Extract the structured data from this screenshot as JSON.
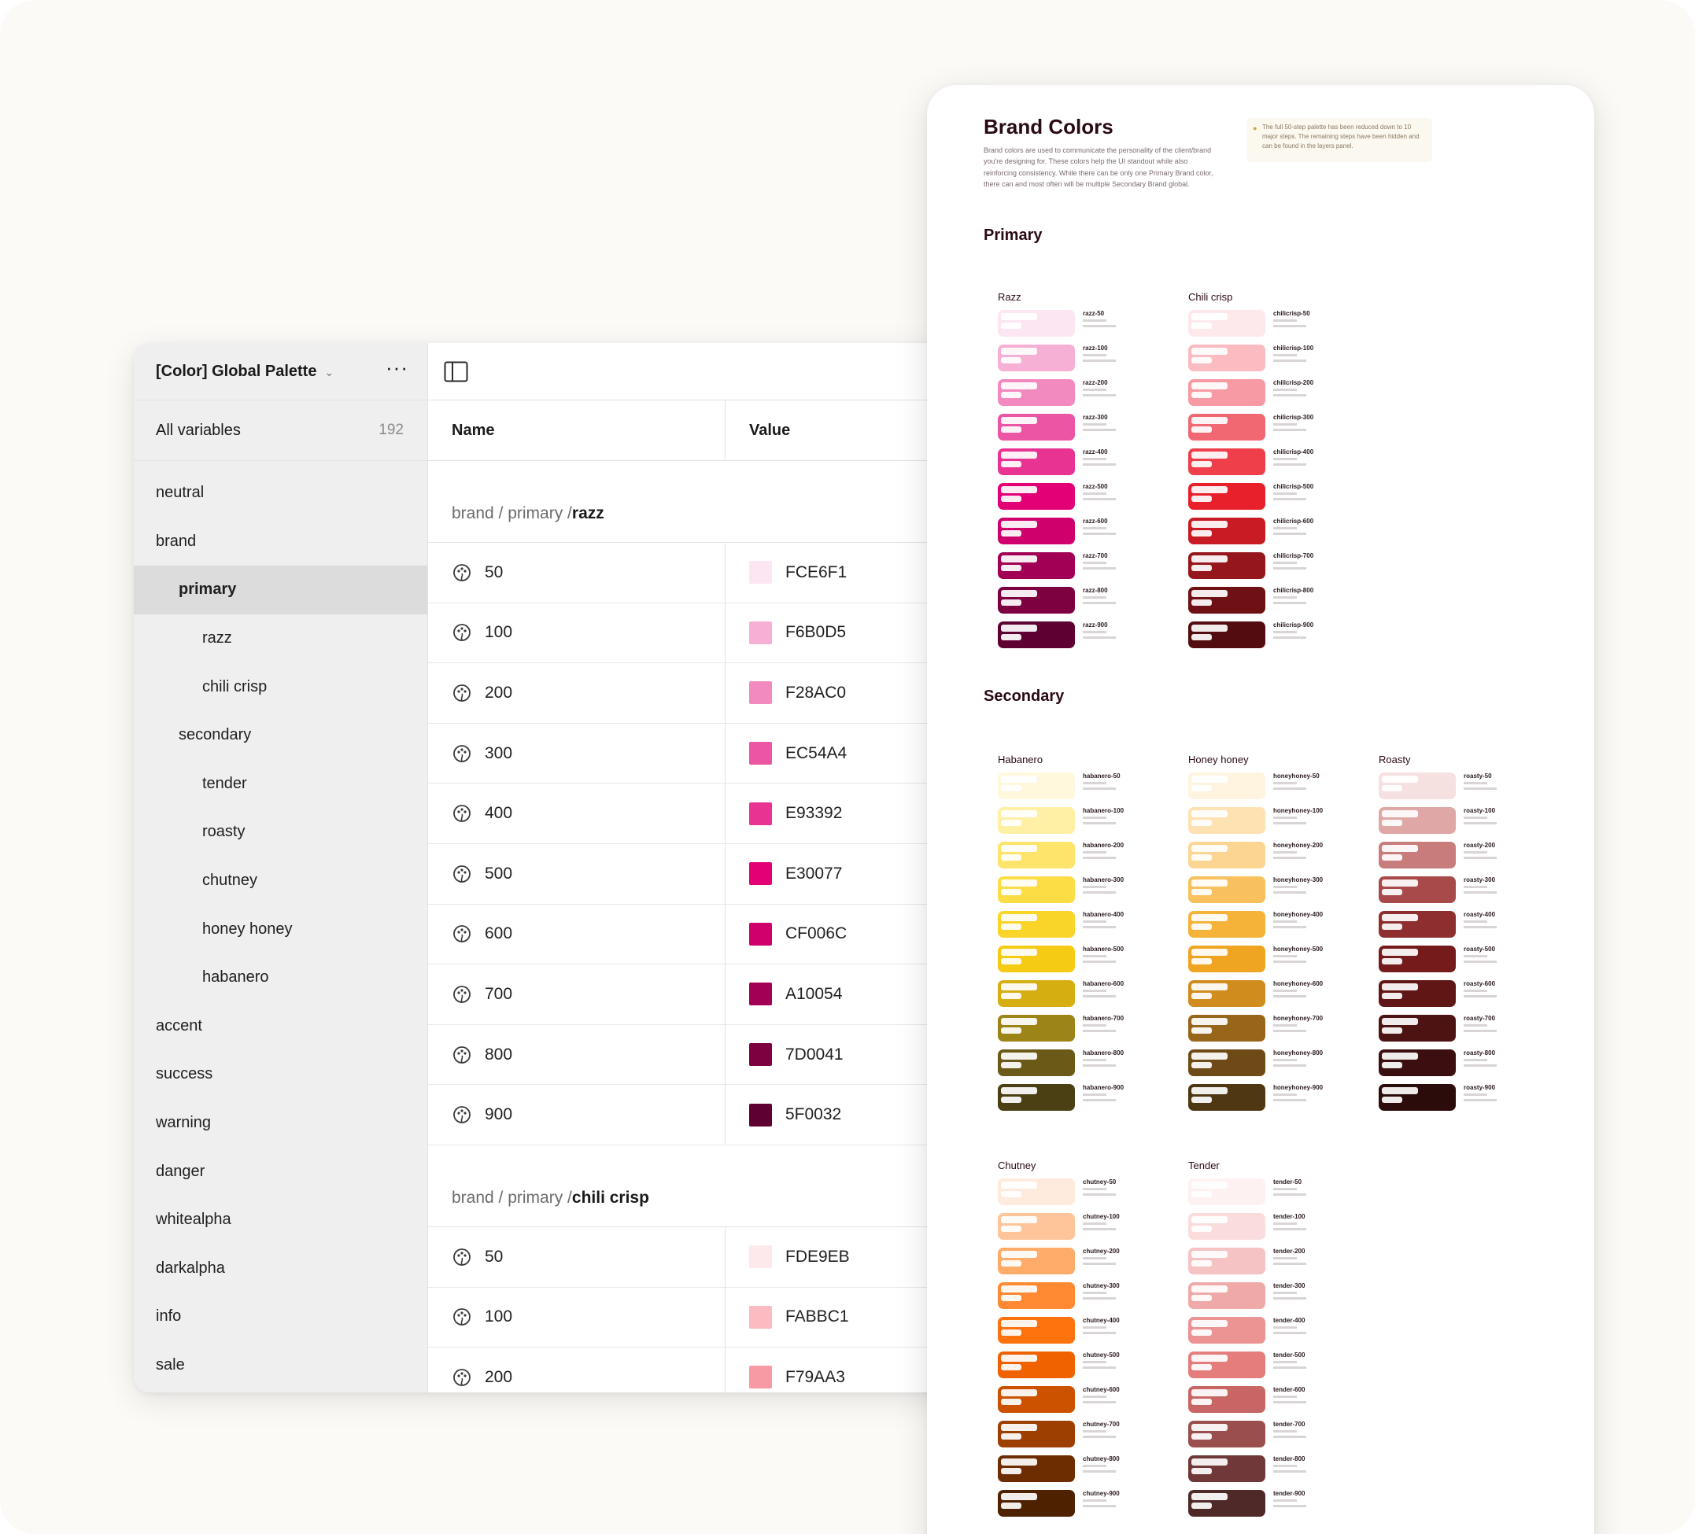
{
  "window": {
    "collection_title": "[Color] Global Palette",
    "all_variables_label": "All variables",
    "all_variables_count": "192"
  },
  "sidebar": {
    "groups": [
      {
        "label": "neutral",
        "level": 0
      },
      {
        "label": "brand",
        "level": 0
      },
      {
        "label": "primary",
        "level": 1,
        "selected": true
      },
      {
        "label": "razz",
        "level": 2
      },
      {
        "label": "chili crisp",
        "level": 2
      },
      {
        "label": "secondary",
        "level": 1
      },
      {
        "label": "tender",
        "level": 2
      },
      {
        "label": "roasty",
        "level": 2
      },
      {
        "label": "chutney",
        "level": 2
      },
      {
        "label": "honey honey",
        "level": 2
      },
      {
        "label": "habanero",
        "level": 2
      },
      {
        "label": "accent",
        "level": 0
      },
      {
        "label": "success",
        "level": 0
      },
      {
        "label": "warning",
        "level": 0
      },
      {
        "label": "danger",
        "level": 0
      },
      {
        "label": "whitealpha",
        "level": 0
      },
      {
        "label": "darkalpha",
        "level": 0
      },
      {
        "label": "info",
        "level": 0
      },
      {
        "label": "sale",
        "level": 0
      }
    ]
  },
  "table": {
    "headers": {
      "name": "Name",
      "value": "Value"
    },
    "sections": [
      {
        "path_prefix": "brand / primary / ",
        "path_leaf": "razz",
        "rows": [
          {
            "name": "50",
            "hex": "FCE6F1"
          },
          {
            "name": "100",
            "hex": "F6B0D5"
          },
          {
            "name": "200",
            "hex": "F28AC0"
          },
          {
            "name": "300",
            "hex": "EC54A4"
          },
          {
            "name": "400",
            "hex": "E93392"
          },
          {
            "name": "500",
            "hex": "E30077"
          },
          {
            "name": "600",
            "hex": "CF006C"
          },
          {
            "name": "700",
            "hex": "A10054"
          },
          {
            "name": "800",
            "hex": "7D0041"
          },
          {
            "name": "900",
            "hex": "5F0032"
          }
        ]
      },
      {
        "path_prefix": "brand / primary / ",
        "path_leaf": "chili crisp",
        "rows": [
          {
            "name": "50",
            "hex": "FDE9EB"
          },
          {
            "name": "100",
            "hex": "FABBC1"
          },
          {
            "name": "200",
            "hex": "F79AA3"
          }
        ]
      }
    ]
  },
  "doc": {
    "title": "Brand Colors",
    "description": "Brand colors are used to communicate the personality of the client/brand you're designing for. These colors help the UI standout while also reinforcing consistency. While there can be only one Primary Brand color, there can and most often will be multiple Secondary Brand global.",
    "note": "The full 50-step palette has been reduced down to 10 major steps. The remaining steps have been hidden and can be found in the layers panel.",
    "primary_heading": "Primary",
    "secondary_heading": "Secondary",
    "families": [
      {
        "title": "Razz",
        "prefix": "razz",
        "colors": [
          "#FCE6F1",
          "#F6B0D5",
          "#F28AC0",
          "#EC54A4",
          "#E93392",
          "#E30077",
          "#CF006C",
          "#A10054",
          "#7D0041",
          "#5F0032"
        ]
      },
      {
        "title": "Chili crisp",
        "prefix": "chilicrisp",
        "colors": [
          "#FDE9EB",
          "#FABBC1",
          "#F79AA3",
          "#F26872",
          "#EE3F4A",
          "#E8202B",
          "#C81B24",
          "#96161D",
          "#6E1014",
          "#530C10"
        ]
      },
      {
        "title": "Habanero",
        "prefix": "habanero",
        "colors": [
          "#FFF8DC",
          "#FFF0A6",
          "#FFE46B",
          "#FCDD45",
          "#F9D429",
          "#F5CB14",
          "#D5AE12",
          "#9C8417",
          "#6B5A17",
          "#4B3F14"
        ]
      },
      {
        "title": "Honey honey",
        "prefix": "honeyhoney",
        "colors": [
          "#FFF4E0",
          "#FFE2B2",
          "#FDD592",
          "#F8C15D",
          "#F6B33A",
          "#EFA422",
          "#D08C1D",
          "#98661A",
          "#6E4B16",
          "#4F3712"
        ]
      },
      {
        "title": "Roasty",
        "prefix": "roasty",
        "colors": [
          "#F6E1E1",
          "#E0A7A7",
          "#C97C7C",
          "#A84A4A",
          "#8E2E2E",
          "#751B1B",
          "#611616",
          "#4D1313",
          "#3B0F0F",
          "#2C0B0B"
        ]
      },
      {
        "title": "Chutney",
        "prefix": "chutney",
        "colors": [
          "#FFEBDD",
          "#FFC59A",
          "#FFAB6A",
          "#FF8A33",
          "#FF730F",
          "#F06200",
          "#CC5200",
          "#9C3F00",
          "#6E2D00",
          "#4E2100"
        ]
      },
      {
        "title": "Tender",
        "prefix": "tender",
        "colors": [
          "#FDF1F1",
          "#FADCDC",
          "#F5C3C3",
          "#F0A9A9",
          "#EC9393",
          "#E57D7D",
          "#C86666",
          "#9A4E4E",
          "#703838",
          "#4F2828"
        ]
      }
    ],
    "steps": [
      "50",
      "100",
      "200",
      "300",
      "400",
      "500",
      "600",
      "700",
      "800",
      "900"
    ]
  }
}
